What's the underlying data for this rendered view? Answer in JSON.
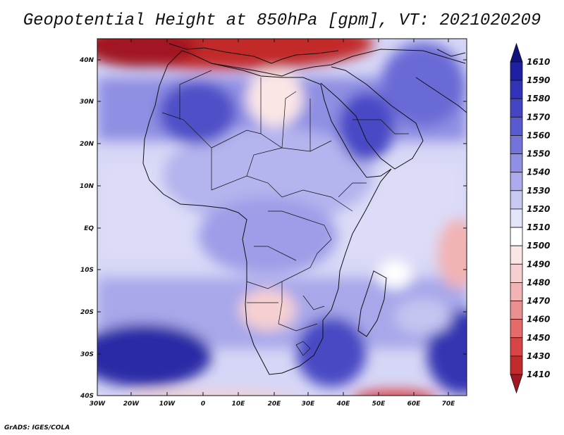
{
  "title": "Geopotential Height at 850hPa [gpm], VT: 2021020209",
  "footer": "GrADS: IGES/COLA",
  "map": {
    "lat_ticks": [
      "40N",
      "30N",
      "20N",
      "10N",
      "EQ",
      "10S",
      "20S",
      "30S",
      "40S"
    ],
    "lon_ticks": [
      "30W",
      "20W",
      "10W",
      "0",
      "10E",
      "20E",
      "30E",
      "40E",
      "50E",
      "60E",
      "70E"
    ]
  },
  "colorbar": {
    "labels": [
      "1410",
      "1430",
      "1450",
      "1460",
      "1470",
      "1480",
      "1490",
      "1500",
      "1510",
      "1520",
      "1530",
      "1540",
      "1550",
      "1560",
      "1570",
      "1580",
      "1590",
      "1610"
    ],
    "colors": [
      "#a11820",
      "#c22a2c",
      "#d84448",
      "#e46a6c",
      "#eb9090",
      "#f1b3b3",
      "#f6d0d0",
      "#fbe6e6",
      "#ffffff",
      "#e4e4f9",
      "#c8c8f2",
      "#acacec",
      "#8f8fe3",
      "#7373da",
      "#5a5ad0",
      "#4444c4",
      "#3232b8",
      "#1f1fa4",
      "#12127e"
    ]
  }
}
